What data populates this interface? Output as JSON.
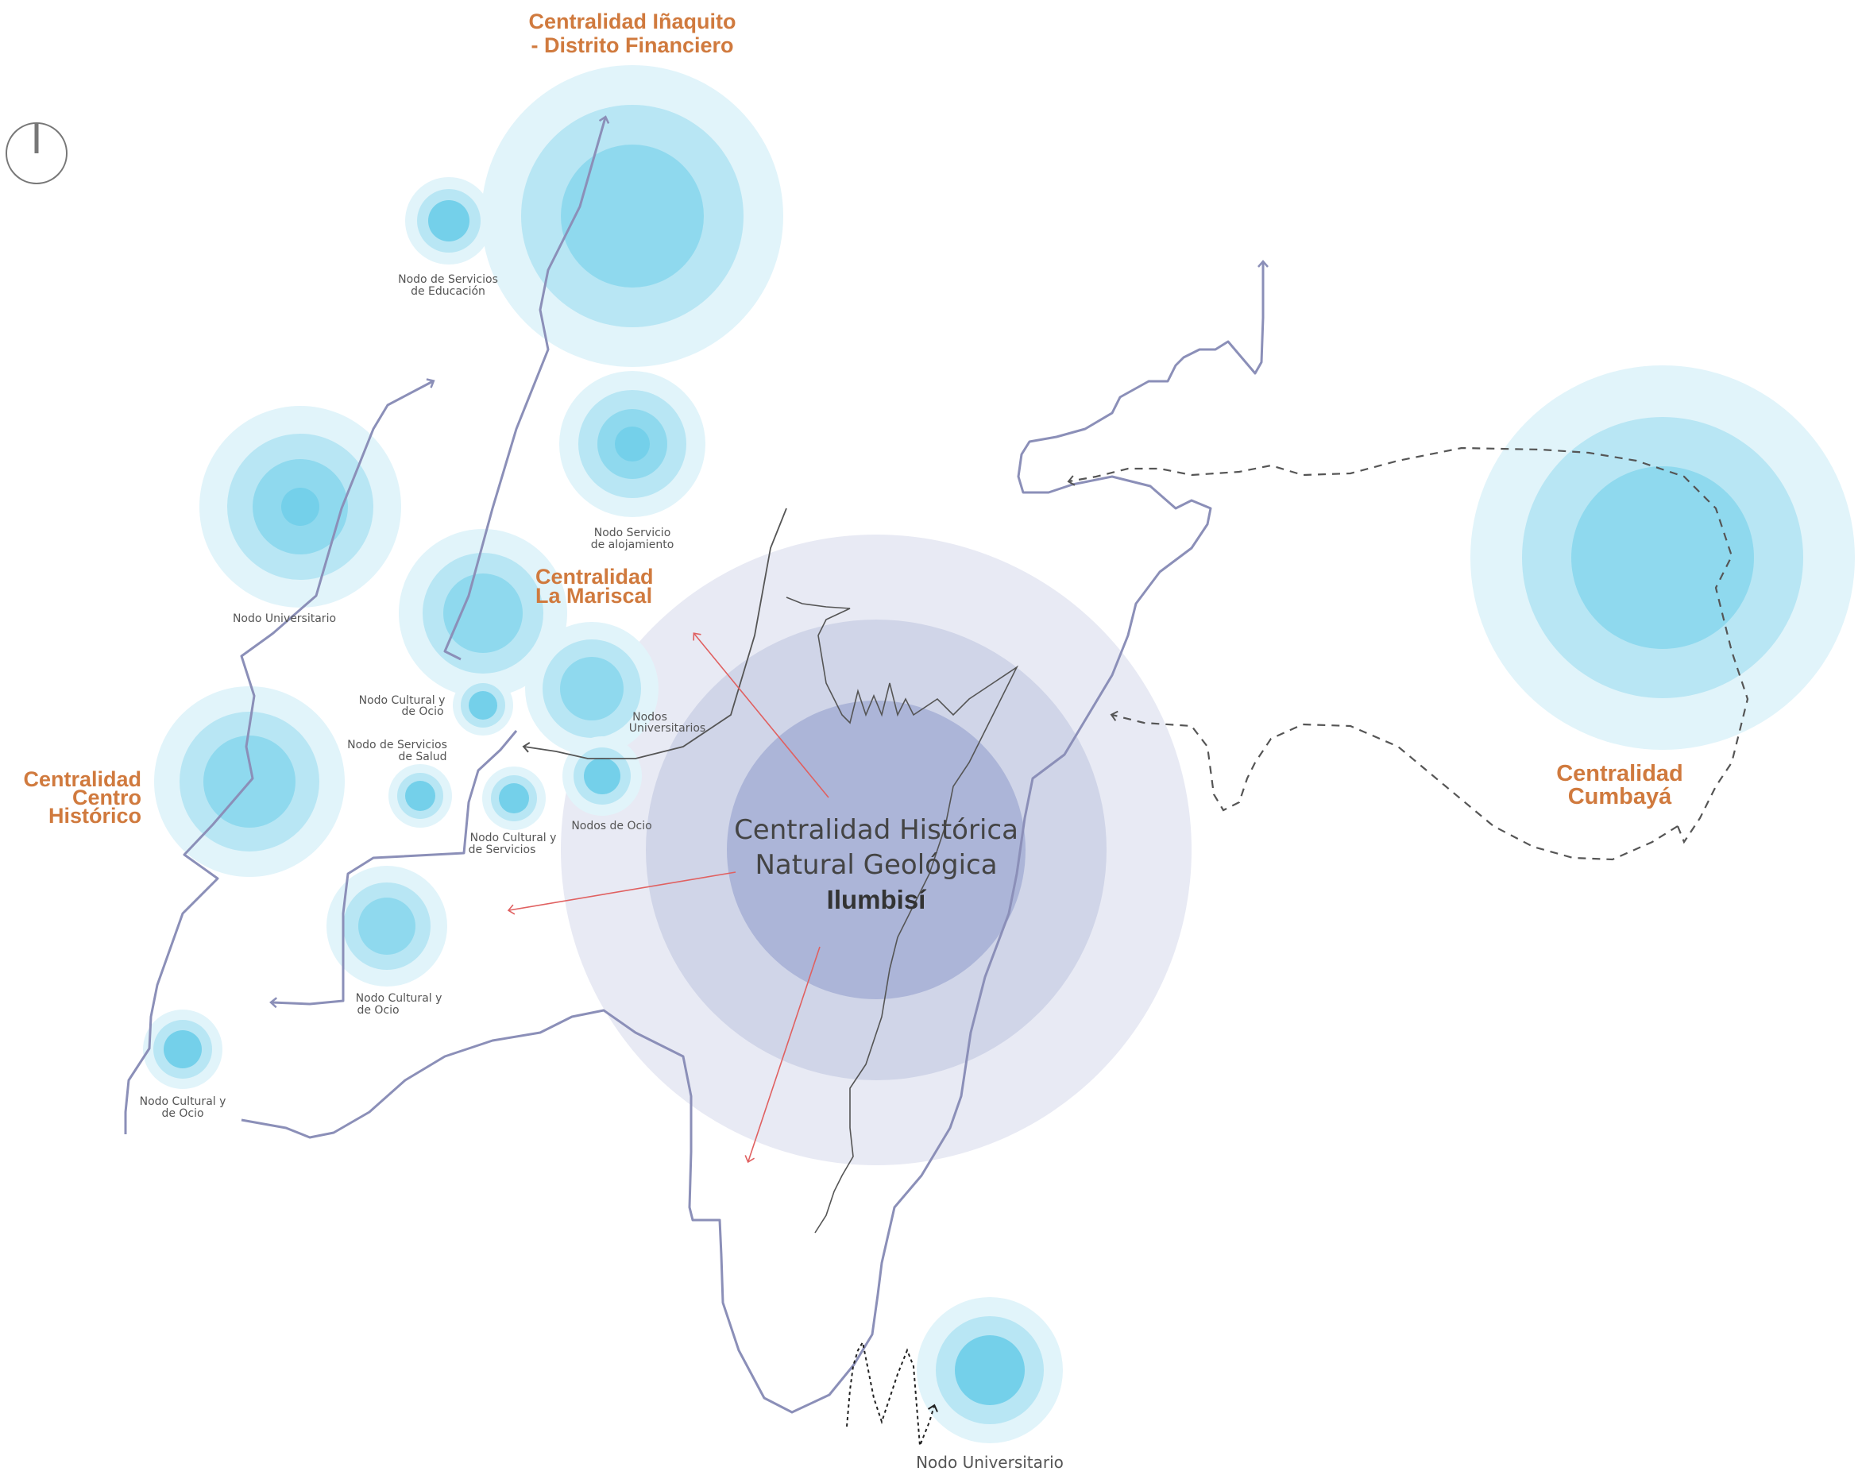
{
  "colors": {
    "node_outer": "#e1f4fa",
    "node_mid": "#b8e6f4",
    "node_inner": "#8fd9ee",
    "node_core": "#74d0ea",
    "center_outer": "#e8eaf4",
    "center_mid": "#d0d5e8",
    "center_inner": "#acb5d8",
    "route": "#8b8fb8",
    "orange": "#d07a3e",
    "red_arrow": "#e06060",
    "dash": "#555555"
  },
  "labels": {
    "inaquito": [
      "Centralidad Iñaquito",
      "- Distrito Financiero"
    ],
    "mariscal": [
      "Centralidad",
      "La Mariscal"
    ],
    "centro_historico": [
      "Centralidad",
      "Centro",
      "Histórico"
    ],
    "cumbaya": [
      "Centralidad",
      "Cumbayá"
    ],
    "center": [
      "Centralidad Histórica",
      "Natural Geológica"
    ],
    "center_bold": "Ilumbisí",
    "educacion": [
      "Nodo de Servicios",
      "de Educación"
    ],
    "alojamiento": [
      "Nodo Servicio",
      "de alojamiento"
    ],
    "universitario_left": "Nodo Universitario",
    "cultural_ocio_1": [
      "Nodo Cultural y",
      "de Ocio"
    ],
    "salud": [
      "Nodo de Servicios",
      "de Salud"
    ],
    "universitarios": [
      "Nodos",
      "Universitarios"
    ],
    "cultural_servicios": [
      "Nodo Cultural y",
      "de Servicios"
    ],
    "ocio": "Nodos de Ocio",
    "cultural_ocio_2": [
      "Nodo Cultural y",
      "de Ocio"
    ],
    "cultural_ocio_3": [
      "Nodo Cultural y",
      "de Ocio"
    ],
    "universitario_bottom": "Nodo Universitario"
  }
}
